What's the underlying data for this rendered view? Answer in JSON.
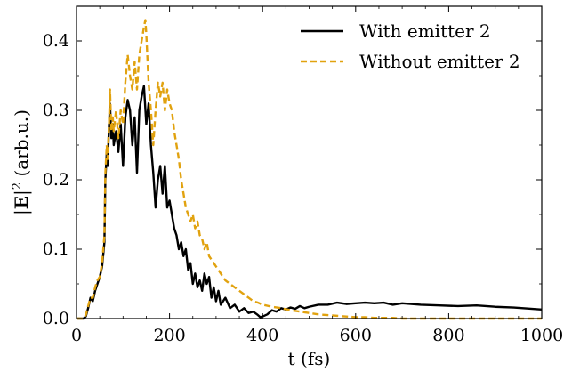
{
  "chart_data": {
    "type": "line",
    "xlabel": "t (fs)",
    "ylabel_prefix": "|",
    "ylabel_bold": "E",
    "ylabel_suffix": "|",
    "ylabel_sup": "2",
    "ylabel_tail": " (arb.u.)",
    "xlim": [
      0,
      1000
    ],
    "ylim": [
      0,
      0.45
    ],
    "xticks": [
      0,
      200,
      400,
      600,
      800,
      1000
    ],
    "xtick_labels": [
      "0",
      "200",
      "400",
      "600",
      "800",
      "1000"
    ],
    "yticks": [
      0.0,
      0.1,
      0.2,
      0.3,
      0.4
    ],
    "ytick_labels": [
      "0.0",
      "0.1",
      "0.2",
      "0.3",
      "0.4"
    ],
    "grid": false,
    "legend_position": "top-right",
    "series": [
      {
        "name": "With emitter 2",
        "color": "#000000",
        "dash": "solid",
        "x": [
          0,
          15,
          20,
          25,
          30,
          35,
          40,
          45,
          50,
          55,
          60,
          62,
          65,
          67,
          70,
          72,
          75,
          78,
          80,
          85,
          90,
          95,
          100,
          105,
          110,
          115,
          120,
          125,
          130,
          135,
          140,
          145,
          150,
          155,
          160,
          165,
          170,
          175,
          180,
          185,
          190,
          195,
          200,
          205,
          210,
          215,
          220,
          225,
          230,
          235,
          240,
          245,
          250,
          255,
          260,
          265,
          270,
          275,
          280,
          285,
          290,
          295,
          300,
          305,
          310,
          320,
          330,
          340,
          350,
          360,
          370,
          380,
          390,
          395,
          400,
          410,
          420,
          430,
          440,
          450,
          460,
          470,
          480,
          490,
          500,
          520,
          540,
          560,
          580,
          600,
          620,
          640,
          660,
          680,
          700,
          740,
          780,
          820,
          860,
          900,
          940,
          980,
          1000
        ],
        "y": [
          0,
          0.0,
          0.003,
          0.015,
          0.03,
          0.025,
          0.04,
          0.05,
          0.06,
          0.075,
          0.11,
          0.2,
          0.24,
          0.22,
          0.28,
          0.31,
          0.26,
          0.28,
          0.25,
          0.27,
          0.24,
          0.28,
          0.22,
          0.29,
          0.315,
          0.3,
          0.25,
          0.29,
          0.21,
          0.3,
          0.32,
          0.335,
          0.28,
          0.31,
          0.25,
          0.21,
          0.16,
          0.2,
          0.22,
          0.18,
          0.22,
          0.16,
          0.17,
          0.15,
          0.13,
          0.12,
          0.1,
          0.11,
          0.09,
          0.1,
          0.07,
          0.08,
          0.05,
          0.065,
          0.045,
          0.055,
          0.04,
          0.065,
          0.05,
          0.06,
          0.03,
          0.045,
          0.025,
          0.04,
          0.02,
          0.03,
          0.015,
          0.02,
          0.01,
          0.015,
          0.008,
          0.01,
          0.005,
          0.002,
          0.003,
          0.006,
          0.012,
          0.01,
          0.015,
          0.013,
          0.016,
          0.014,
          0.018,
          0.015,
          0.017,
          0.02,
          0.02,
          0.023,
          0.021,
          0.022,
          0.023,
          0.022,
          0.023,
          0.02,
          0.022,
          0.02,
          0.019,
          0.018,
          0.019,
          0.017,
          0.016,
          0.014,
          0.013
        ]
      },
      {
        "name": "Without emitter 2",
        "color": "#e1a20f",
        "dash": "dashed",
        "x": [
          0,
          15,
          20,
          25,
          30,
          35,
          40,
          45,
          50,
          55,
          60,
          62,
          65,
          67,
          70,
          72,
          75,
          78,
          80,
          85,
          90,
          95,
          100,
          105,
          110,
          115,
          120,
          125,
          130,
          135,
          140,
          145,
          148,
          150,
          155,
          160,
          165,
          170,
          175,
          180,
          185,
          190,
          195,
          200,
          205,
          210,
          215,
          220,
          225,
          230,
          235,
          240,
          245,
          250,
          255,
          260,
          265,
          270,
          275,
          280,
          285,
          290,
          300,
          310,
          320,
          330,
          340,
          350,
          360,
          370,
          380,
          390,
          400,
          420,
          440,
          460,
          480,
          500,
          520,
          540,
          560,
          580,
          600,
          620,
          640,
          660,
          680,
          700,
          740,
          800,
          900,
          1000
        ],
        "y": [
          0,
          0.0,
          0.005,
          0.018,
          0.03,
          0.03,
          0.045,
          0.055,
          0.06,
          0.08,
          0.12,
          0.21,
          0.25,
          0.23,
          0.28,
          0.33,
          0.27,
          0.29,
          0.27,
          0.3,
          0.26,
          0.3,
          0.28,
          0.34,
          0.38,
          0.35,
          0.33,
          0.37,
          0.33,
          0.38,
          0.4,
          0.42,
          0.43,
          0.41,
          0.34,
          0.3,
          0.25,
          0.3,
          0.34,
          0.32,
          0.34,
          0.3,
          0.33,
          0.31,
          0.3,
          0.27,
          0.25,
          0.23,
          0.2,
          0.18,
          0.16,
          0.15,
          0.14,
          0.15,
          0.13,
          0.14,
          0.12,
          0.115,
          0.1,
          0.11,
          0.09,
          0.085,
          0.075,
          0.065,
          0.055,
          0.05,
          0.045,
          0.04,
          0.035,
          0.03,
          0.025,
          0.023,
          0.02,
          0.017,
          0.015,
          0.012,
          0.01,
          0.008,
          0.006,
          0.005,
          0.004,
          0.003,
          0.002,
          0.002,
          0.001,
          0.001,
          0.001,
          0.0,
          0.0,
          0.0,
          0.0,
          0.0
        ]
      }
    ]
  }
}
